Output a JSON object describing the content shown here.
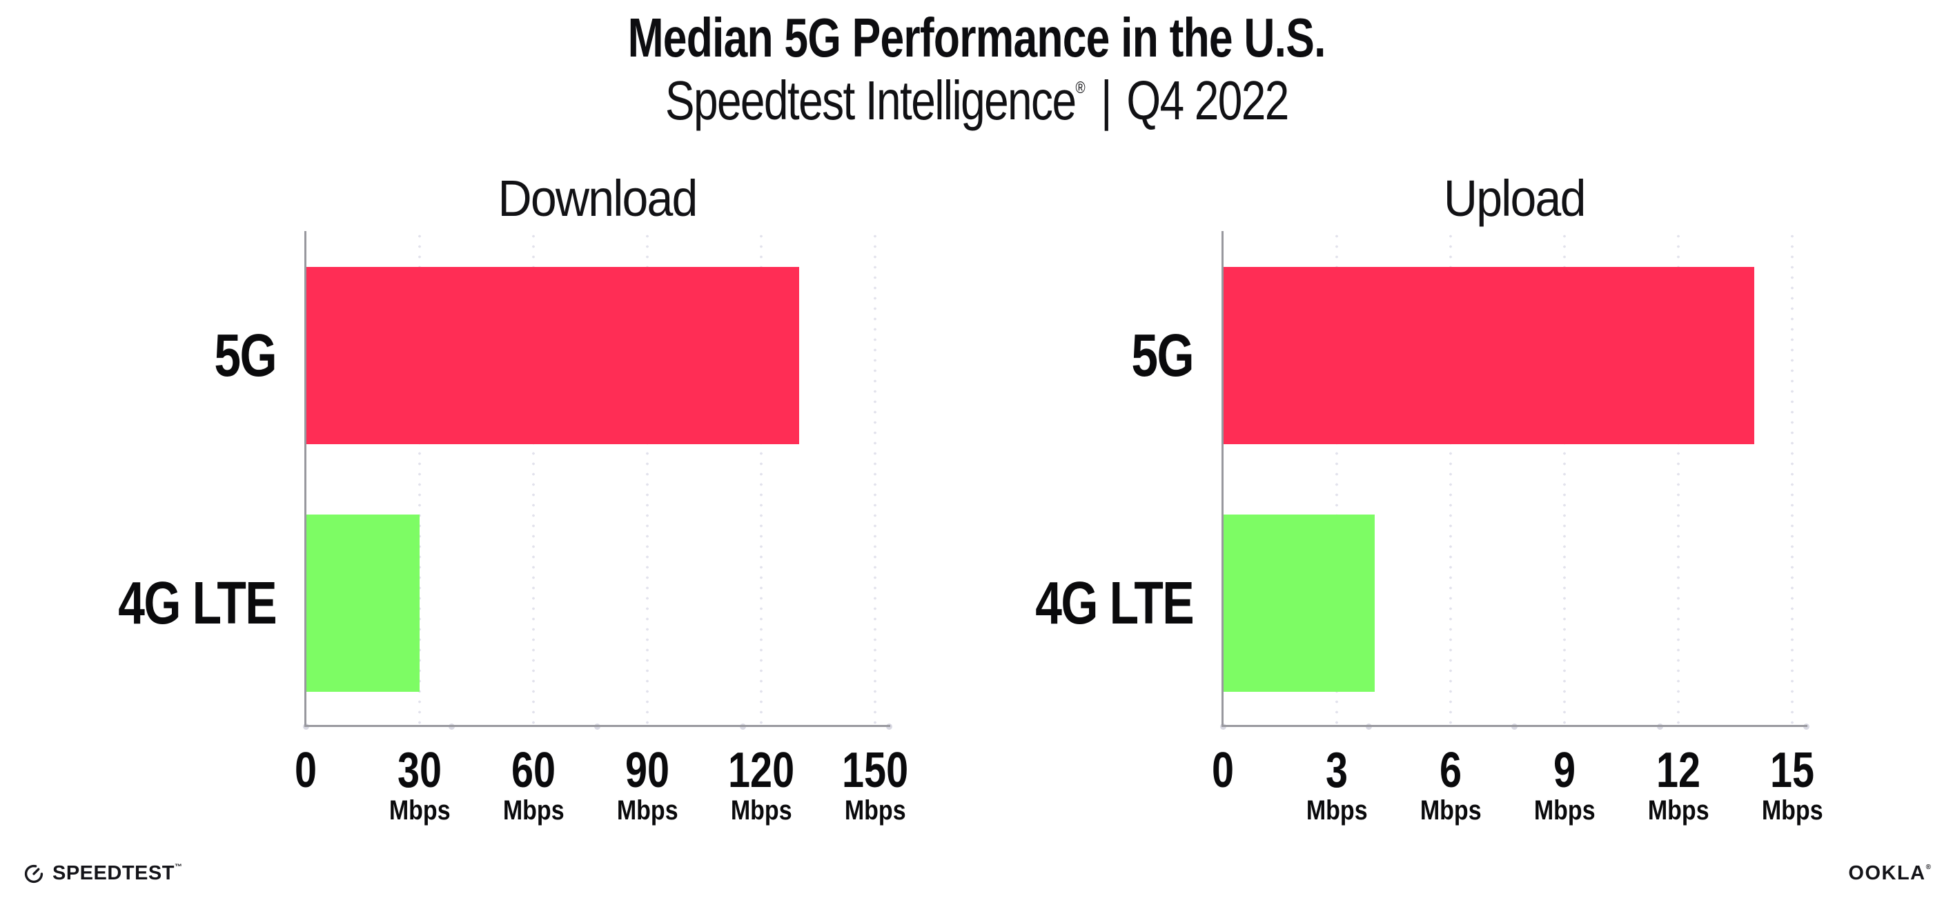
{
  "header": {
    "title": "Median 5G Performance in the U.S.",
    "subtitle": {
      "brand": "Speedtest Intelligence",
      "registered": "®",
      "separator": "|",
      "period": "Q4 2022"
    }
  },
  "chart_data": [
    {
      "type": "bar",
      "orientation": "horizontal",
      "title": "Download",
      "categories": [
        "5G",
        "4G LTE"
      ],
      "values": [
        130,
        30
      ],
      "unit": "Mbps",
      "xlim": [
        0,
        154
      ],
      "xticks": [
        0,
        30,
        60,
        90,
        120,
        150
      ],
      "tick_step": 30,
      "bar_colors": [
        "#ff2d55",
        "#7dfc64"
      ],
      "grid": "dotted-vertical",
      "legend": "none"
    },
    {
      "type": "bar",
      "orientation": "horizontal",
      "title": "Upload",
      "categories": [
        "5G",
        "4G LTE"
      ],
      "values": [
        14,
        4
      ],
      "unit": "Mbps",
      "xlim": [
        0,
        15.4
      ],
      "xticks": [
        0,
        3,
        6,
        9,
        12,
        15
      ],
      "tick_step": 3,
      "bar_colors": [
        "#ff2d55",
        "#7dfc64"
      ],
      "grid": "dotted-vertical",
      "legend": "none"
    }
  ],
  "footer": {
    "speedtest": {
      "icon": "speedtest-gauge-icon",
      "label": "SPEEDTEST",
      "trademark": "™"
    },
    "ookla": {
      "label": "OOKLA",
      "registered": "®"
    }
  },
  "colors": {
    "bar_5g": "#ff2d55",
    "bar_4g_lte": "#7dfc64",
    "axis_line": "#98989e",
    "gridline_dots": "#e2e2ec",
    "text": "#0d0d10"
  }
}
